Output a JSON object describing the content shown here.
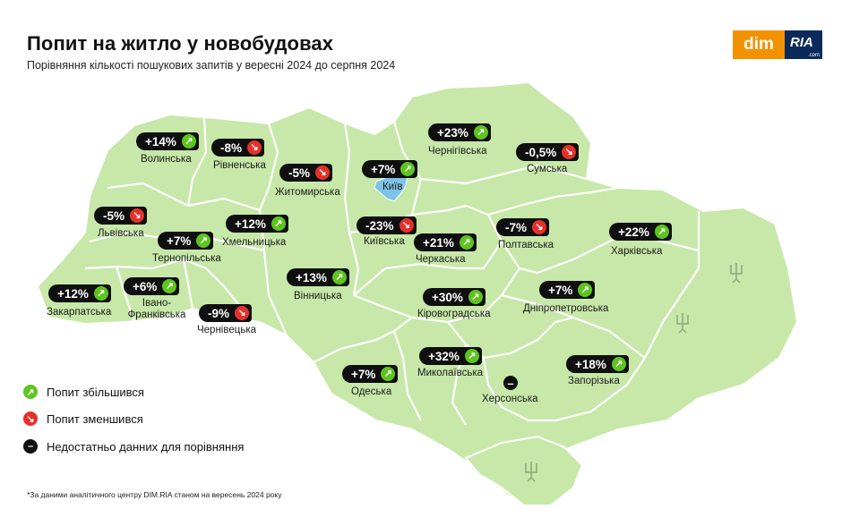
{
  "title": "Попит на житло у новобудовах",
  "subtitle": "Порівняння кількості пошукових запитів у вересні 2024 до серпня 2024",
  "logo": {
    "part1": "dim",
    "part2": "RIA",
    "part3": ".com"
  },
  "colors": {
    "increase": "#5ec41f",
    "decrease": "#e5312b",
    "nodata": "#0f0f0f",
    "land": "#c7e8a9",
    "kyiv": "#7fc3e8",
    "borders": "#ffffff"
  },
  "regions": [
    {
      "id": "volynska",
      "name": "Волинська",
      "value": "+14%",
      "trend": "up"
    },
    {
      "id": "rivnenska",
      "name": "Рівненська",
      "value": "-8%",
      "trend": "down"
    },
    {
      "id": "zhytomyrska",
      "name": "Житомирська",
      "value": "-5%",
      "trend": "down"
    },
    {
      "id": "kyiv",
      "name": "Київ",
      "value": "+7%",
      "trend": "up"
    },
    {
      "id": "chernihivska",
      "name": "Чернігівська",
      "value": "+23%",
      "trend": "up"
    },
    {
      "id": "sumska",
      "name": "Сумська",
      "value": "-0,5%",
      "trend": "down"
    },
    {
      "id": "lvivska",
      "name": "Львівська",
      "value": "-5%",
      "trend": "down"
    },
    {
      "id": "khmelnytska",
      "name": "Хмельницька",
      "value": "+12%",
      "trend": "up"
    },
    {
      "id": "ternopilska",
      "name": "Тернопільська",
      "value": "+7%",
      "trend": "up"
    },
    {
      "id": "kyivska",
      "name": "Київська",
      "value": "-23%",
      "trend": "down"
    },
    {
      "id": "cherkaska",
      "name": "Черкаська",
      "value": "+21%",
      "trend": "up"
    },
    {
      "id": "poltavska",
      "name": "Полтавська",
      "value": "-7%",
      "trend": "down"
    },
    {
      "id": "kharkivska",
      "name": "Харківська",
      "value": "+22%",
      "trend": "up"
    },
    {
      "id": "zakarpatska",
      "name": "Закарпатська",
      "value": "+12%",
      "trend": "up"
    },
    {
      "id": "ivano",
      "name": "Івано-Франківська",
      "value": "+6%",
      "trend": "up"
    },
    {
      "id": "vinnytska",
      "name": "Вінницька",
      "value": "+13%",
      "trend": "up"
    },
    {
      "id": "chernivetska",
      "name": "Чернівецька",
      "value": "-9%",
      "trend": "down"
    },
    {
      "id": "kirovohradska",
      "name": "Кіровоградська",
      "value": "+30%",
      "trend": "up"
    },
    {
      "id": "dnipro",
      "name": "Дніпропетровська",
      "value": "+7%",
      "trend": "up"
    },
    {
      "id": "odeska",
      "name": "Одеська",
      "value": "+7%",
      "trend": "up"
    },
    {
      "id": "mykolaivska",
      "name": "Миколаївська",
      "value": "+32%",
      "trend": "up"
    },
    {
      "id": "zaporizka",
      "name": "Запорізька",
      "value": "+18%",
      "trend": "up"
    },
    {
      "id": "khersonska",
      "name": "Херсонська",
      "value": "",
      "trend": "none"
    }
  ],
  "legend": [
    {
      "label": "Попит збільшився",
      "trend": "up"
    },
    {
      "label": "Попит зменшився",
      "trend": "down"
    },
    {
      "label": "Недостатньо данних для порівняння",
      "trend": "none"
    }
  ],
  "footnote": "*За даними аналітичного центру DIM.RIA станом на вересень 2024 року"
}
